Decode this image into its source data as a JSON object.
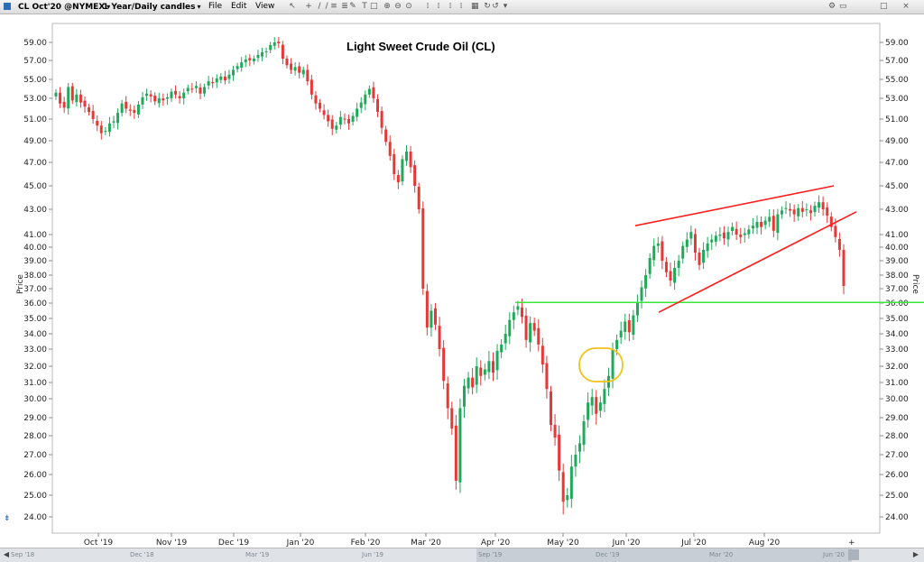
{
  "toolbar": {
    "symbol": "CL Oct'20 @NYMEX",
    "period": "1 Year/Daily candles",
    "menu": [
      "File",
      "Edit",
      "View"
    ],
    "icons": [
      "cursor-icon",
      "crosshair-icon",
      "line-tool-icon",
      "line-tool-icon",
      "channel-tool-icon",
      "fib-tool-icon",
      "pencil-icon",
      "text-tool-icon",
      "shape-tool-icon",
      "zoom-in-icon",
      "zoom-out-icon",
      "zoom-reset-icon",
      "bar-spacing-icon",
      "bar-spacing-icon",
      "bar-spacing-icon",
      "bar-spacing-icon",
      "layout-icon",
      "refresh-icon",
      "refresh-alt-icon",
      "dropdown-icon",
      "settings-icon",
      "minimize-icon",
      "maximize-icon",
      "close-icon"
    ]
  },
  "chart_data": {
    "type": "candlestick",
    "title": "Light Sweet Crude Oil (CL)",
    "ylabel": "Price",
    "ylim": [
      23,
      60.5
    ],
    "y_ticks": [
      "59.00",
      "57.00",
      "55.00",
      "53.00",
      "51.00",
      "49.00",
      "47.00",
      "45.00",
      "43.00",
      "41.00",
      "40.00",
      "39.00",
      "38.00",
      "37.00",
      "36.00",
      "35.00",
      "34.00",
      "33.00",
      "32.00",
      "31.00",
      "30.00",
      "29.00",
      "28.00",
      "27.00",
      "26.00",
      "25.00",
      "24.00"
    ],
    "x_ticks": [
      "Oct '19",
      "Nov '19",
      "Dec '19",
      "Jan '20",
      "Feb '20",
      "Mar '20",
      "Apr '20",
      "May '20",
      "Jun '20",
      "Jul '20",
      "Aug '20"
    ],
    "annotations": {
      "resistance_line_price": 36.05,
      "rising_wedge_upper": [
        [
          41.7,
          45.0
        ]
      ],
      "rising_wedge_lower": [
        [
          35.4,
          42.8
        ]
      ],
      "highlight_circle_center_price": 32.2
    },
    "candles_closes": [
      53.6,
      52.5,
      52.1,
      54.2,
      52.8,
      53.4,
      52.6,
      52.2,
      51.7,
      51.0,
      50.4,
      49.7,
      49.9,
      50.6,
      50.8,
      51.6,
      52.5,
      52.0,
      51.8,
      51.6,
      52.4,
      53.1,
      53.5,
      53.2,
      52.7,
      53.0,
      52.8,
      53.1,
      53.7,
      53.4,
      53.0,
      53.6,
      54.1,
      54.0,
      54.3,
      53.5,
      54.2,
      54.8,
      54.6,
      55.1,
      55.3,
      54.9,
      55.5,
      56.0,
      56.4,
      56.8,
      57.1,
      57.0,
      57.2,
      57.6,
      57.9,
      58.0,
      58.7,
      59.0,
      58.9,
      57.2,
      56.5,
      56.0,
      56.3,
      55.7,
      56.0,
      54.8,
      53.4,
      52.5,
      52.0,
      51.4,
      50.8,
      50.1,
      50.4,
      51.2,
      51.0,
      50.6,
      51.3,
      52.0,
      52.6,
      53.4,
      54.0,
      53.0,
      51.7,
      50.2,
      48.9,
      47.6,
      46.0,
      45.3,
      47.3,
      48.0,
      46.6,
      45.0,
      43.0,
      37.0,
      34.4,
      35.5,
      34.6,
      33.0,
      31.1,
      29.5,
      28.4,
      25.7,
      29.5,
      30.8,
      31.3,
      30.7,
      32.0,
      31.4,
      31.8,
      32.3,
      31.6,
      32.9,
      33.3,
      34.0,
      34.9,
      35.4,
      35.8,
      35.1,
      33.6,
      34.7,
      34.2,
      33.3,
      32.1,
      30.6,
      28.6,
      27.9,
      26.2,
      24.7,
      25.0,
      26.4,
      27.0,
      27.6,
      28.8,
      29.8,
      30.1,
      29.2,
      29.8,
      30.6,
      31.4,
      33.0,
      33.6,
      34.2,
      34.8,
      34.1,
      35.2,
      36.0,
      37.1,
      38.0,
      39.2,
      40.1,
      40.3,
      39.0,
      38.2,
      37.6,
      38.5,
      39.0,
      40.1,
      40.6,
      41.2,
      39.6,
      38.7,
      39.8,
      40.3,
      40.6,
      40.9,
      41.0,
      40.7,
      41.2,
      41.6,
      41.0,
      40.8,
      41.1,
      41.4,
      41.7,
      42.0,
      41.6,
      42.1,
      42.4,
      41.3,
      42.6,
      42.9,
      43.1,
      42.9,
      42.6,
      43.1,
      42.8,
      43.0,
      42.7,
      43.3,
      43.6,
      43.0,
      42.5,
      41.6,
      40.8,
      39.8,
      37.2
    ]
  }
}
